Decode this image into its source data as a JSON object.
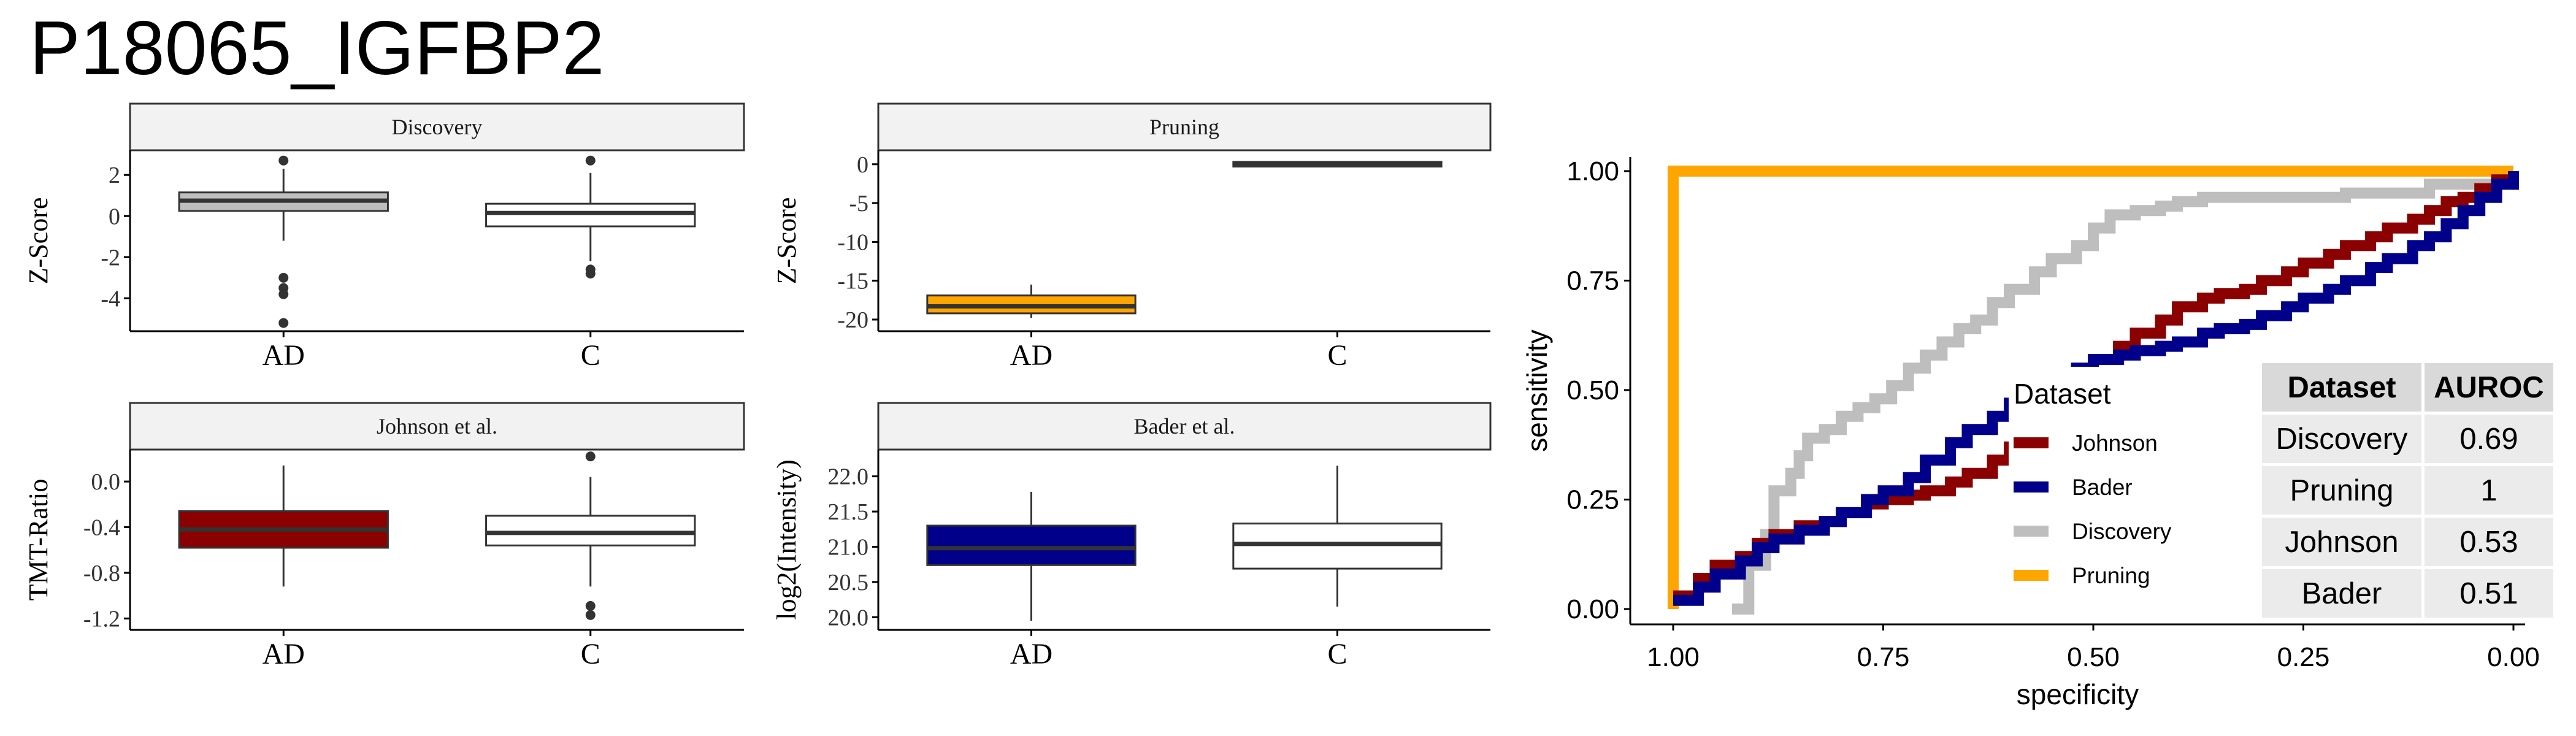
{
  "title": "P18065_IGFBP2",
  "colors": {
    "Johnson": "#8b0000",
    "Bader": "#00008b",
    "Discovery": "#bebebe",
    "Pruning": "#ffa500",
    "C": "#ffffff"
  },
  "chart_data": [
    {
      "type": "box",
      "title": "Discovery",
      "ylabel": "Z-Score",
      "xlabel": "",
      "categories": [
        "AD",
        "C"
      ],
      "ylim": [
        -5.6,
        3.2
      ],
      "yticks": [
        2,
        0,
        -2,
        -4
      ],
      "ytick_labels": [
        "2",
        "0",
        "-2",
        "-4"
      ],
      "boxes": [
        {
          "group": "AD",
          "q1": 0.25,
          "median": 0.75,
          "q3": 1.15,
          "whisker_low": -1.2,
          "whisker_high": 2.3,
          "outliers": [
            2.7,
            -3.0,
            -3.5,
            -3.8,
            -5.2
          ],
          "fill": "Discovery"
        },
        {
          "group": "C",
          "q1": -0.5,
          "median": 0.15,
          "q3": 0.6,
          "whisker_low": -2.2,
          "whisker_high": 2.1,
          "outliers": [
            2.7,
            -2.6,
            -2.8
          ],
          "fill": "C"
        }
      ]
    },
    {
      "type": "box",
      "title": "Pruning",
      "ylabel": "Z-Score",
      "xlabel": "",
      "categories": [
        "AD",
        "C"
      ],
      "ylim": [
        -21.5,
        1.8
      ],
      "yticks": [
        0,
        -5,
        -10,
        -15,
        -20
      ],
      "ytick_labels": [
        "0",
        "-5",
        "-10",
        "-15",
        "-20"
      ],
      "boxes": [
        {
          "group": "AD",
          "q1": -19.2,
          "median": -18.3,
          "q3": -16.9,
          "whisker_low": -19.8,
          "whisker_high": -15.5,
          "outliers": [],
          "fill": "Pruning"
        },
        {
          "group": "C",
          "q1": -0.3,
          "median": 0.0,
          "q3": 0.3,
          "whisker_low": -0.4,
          "whisker_high": 0.4,
          "outliers": [],
          "fill": "C"
        }
      ]
    },
    {
      "type": "box",
      "title": "Johnson et al.",
      "ylabel": "TMT-Ratio",
      "xlabel": "",
      "categories": [
        "AD",
        "C"
      ],
      "ylim": [
        -1.3,
        0.28
      ],
      "yticks": [
        0.0,
        -0.4,
        -0.8,
        -1.2
      ],
      "ytick_labels": [
        "0.0",
        "-0.4",
        "-0.8",
        "-1.2"
      ],
      "boxes": [
        {
          "group": "AD",
          "q1": -0.58,
          "median": -0.42,
          "q3": -0.26,
          "whisker_low": -0.92,
          "whisker_high": 0.14,
          "outliers": [],
          "fill": "Johnson"
        },
        {
          "group": "C",
          "q1": -0.56,
          "median": -0.45,
          "q3": -0.3,
          "whisker_low": -0.92,
          "whisker_high": 0.04,
          "outliers": [
            0.22,
            -1.09,
            -1.17
          ],
          "fill": "C"
        }
      ]
    },
    {
      "type": "box",
      "title": "Bader et al.",
      "ylabel": "log2(Intensity)",
      "xlabel": "",
      "categories": [
        "AD",
        "C"
      ],
      "ylim": [
        19.82,
        22.38
      ],
      "yticks": [
        22.0,
        21.5,
        21.0,
        20.5,
        20.0
      ],
      "ytick_labels": [
        "22.0",
        "21.5",
        "21.0",
        "20.5",
        "20.0"
      ],
      "boxes": [
        {
          "group": "AD",
          "q1": 20.74,
          "median": 20.98,
          "q3": 21.3,
          "whisker_low": 19.95,
          "whisker_high": 21.78,
          "outliers": [],
          "fill": "Bader"
        },
        {
          "group": "C",
          "q1": 20.69,
          "median": 21.04,
          "q3": 21.33,
          "whisker_low": 20.15,
          "whisker_high": 22.15,
          "outliers": [],
          "fill": "C"
        }
      ]
    },
    {
      "type": "line",
      "title": "",
      "xlabel": "specificity",
      "ylabel": "sensitivity",
      "xlim": [
        1.0,
        0.0
      ],
      "ylim": [
        0.0,
        1.0
      ],
      "xticks": [
        1.0,
        0.75,
        0.5,
        0.25,
        0.0
      ],
      "xtick_labels": [
        "1.00",
        "0.75",
        "0.50",
        "0.25",
        "0.00"
      ],
      "yticks": [
        0.0,
        0.25,
        0.5,
        0.75,
        1.0
      ],
      "ytick_labels": [
        "0.00",
        "0.25",
        "0.50",
        "0.75",
        "1.00"
      ],
      "legend": {
        "title": "Dataset",
        "position": "center-right",
        "entries": [
          "Johnson",
          "Bader",
          "Discovery",
          "Pruning"
        ]
      },
      "series": [
        {
          "name": "Pruning",
          "x": [
            1.0,
            1.0,
            0.0
          ],
          "y": [
            0.0,
            1.0,
            1.0
          ]
        },
        {
          "name": "Discovery",
          "x": [
            0.93,
            0.91,
            0.89,
            0.88,
            0.86,
            0.85,
            0.84,
            0.82,
            0.8,
            0.78,
            0.76,
            0.74,
            0.72,
            0.7,
            0.68,
            0.66,
            0.64,
            0.62,
            0.6,
            0.57,
            0.55,
            0.52,
            0.5,
            0.48,
            0.45,
            0.42,
            0.4,
            0.37,
            0.33,
            0.28,
            0.2,
            0.1,
            0.0
          ],
          "y": [
            0.0,
            0.1,
            0.17,
            0.27,
            0.31,
            0.35,
            0.39,
            0.41,
            0.44,
            0.46,
            0.48,
            0.51,
            0.55,
            0.58,
            0.61,
            0.64,
            0.66,
            0.7,
            0.73,
            0.77,
            0.8,
            0.83,
            0.87,
            0.9,
            0.91,
            0.92,
            0.93,
            0.94,
            0.94,
            0.94,
            0.95,
            0.97,
            0.98
          ]
        },
        {
          "name": "Johnson",
          "x": [
            1.0,
            0.97,
            0.95,
            0.92,
            0.9,
            0.88,
            0.85,
            0.82,
            0.8,
            0.77,
            0.75,
            0.72,
            0.7,
            0.67,
            0.65,
            0.62,
            0.6,
            0.57,
            0.55,
            0.52,
            0.5,
            0.47,
            0.45,
            0.42,
            0.4,
            0.37,
            0.35,
            0.32,
            0.3,
            0.27,
            0.25,
            0.22,
            0.2,
            0.17,
            0.15,
            0.12,
            0.1,
            0.08,
            0.06,
            0.04,
            0.02,
            0.0
          ],
          "y": [
            0.03,
            0.07,
            0.1,
            0.12,
            0.15,
            0.17,
            0.19,
            0.2,
            0.22,
            0.24,
            0.25,
            0.26,
            0.27,
            0.29,
            0.31,
            0.34,
            0.37,
            0.42,
            0.47,
            0.52,
            0.57,
            0.6,
            0.63,
            0.66,
            0.69,
            0.71,
            0.72,
            0.73,
            0.75,
            0.77,
            0.79,
            0.81,
            0.83,
            0.85,
            0.87,
            0.89,
            0.91,
            0.93,
            0.94,
            0.96,
            0.98,
            1.0
          ]
        },
        {
          "name": "Bader",
          "x": [
            1.0,
            0.97,
            0.95,
            0.92,
            0.9,
            0.88,
            0.85,
            0.82,
            0.8,
            0.77,
            0.75,
            0.72,
            0.7,
            0.67,
            0.65,
            0.62,
            0.6,
            0.57,
            0.55,
            0.52,
            0.5,
            0.47,
            0.45,
            0.42,
            0.4,
            0.37,
            0.35,
            0.32,
            0.3,
            0.27,
            0.25,
            0.22,
            0.2,
            0.17,
            0.15,
            0.12,
            0.1,
            0.08,
            0.06,
            0.04,
            0.02,
            0.0
          ],
          "y": [
            0.02,
            0.05,
            0.08,
            0.11,
            0.14,
            0.16,
            0.18,
            0.2,
            0.22,
            0.25,
            0.27,
            0.3,
            0.34,
            0.38,
            0.41,
            0.44,
            0.47,
            0.5,
            0.53,
            0.55,
            0.57,
            0.58,
            0.59,
            0.6,
            0.61,
            0.63,
            0.64,
            0.65,
            0.67,
            0.69,
            0.71,
            0.73,
            0.75,
            0.78,
            0.8,
            0.83,
            0.85,
            0.88,
            0.91,
            0.94,
            0.97,
            1.0
          ]
        }
      ]
    }
  ],
  "auroc_table": {
    "headers": [
      "Dataset",
      "AUROC"
    ],
    "rows": [
      [
        "Discovery",
        "0.69"
      ],
      [
        "Pruning",
        "1"
      ],
      [
        "Johnson",
        "0.53"
      ],
      [
        "Bader",
        "0.51"
      ]
    ]
  }
}
